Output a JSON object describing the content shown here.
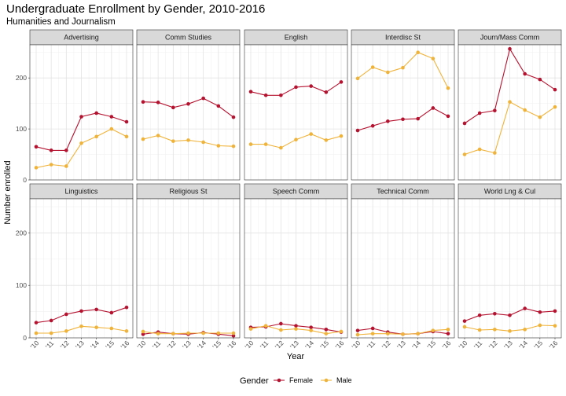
{
  "chart_data": {
    "type": "line",
    "title": "Undergraduate Enrollment by Gender, 2010-2016",
    "subtitle": "Humanities and Journalism",
    "xlabel": "Year",
    "ylabel": "Number enrolled",
    "x": [
      "'10",
      "'11",
      "'12",
      "'13",
      "'14",
      "'15",
      "'16"
    ],
    "ylim": [
      0,
      265
    ],
    "yticks": [
      0,
      100,
      200
    ],
    "grid": true,
    "legend": {
      "title": "Gender",
      "position": "bottom",
      "entries": [
        "Female",
        "Male"
      ]
    },
    "colors": {
      "Female": "#b5122f",
      "Male": "#f0b33a"
    },
    "panels": [
      {
        "name": "Advertising",
        "series": [
          {
            "name": "Female",
            "values": [
              65,
              58,
              58,
              124,
              131,
              124,
              114
            ]
          },
          {
            "name": "Male",
            "values": [
              24,
              30,
              27,
              72,
              85,
              100,
              85
            ]
          }
        ]
      },
      {
        "name": "Comm Studies",
        "series": [
          {
            "name": "Female",
            "values": [
              153,
              152,
              142,
              149,
              160,
              145,
              123
            ]
          },
          {
            "name": "Male",
            "values": [
              80,
              87,
              76,
              78,
              74,
              67,
              66
            ]
          }
        ]
      },
      {
        "name": "English",
        "series": [
          {
            "name": "Female",
            "values": [
              173,
              166,
              166,
              182,
              184,
              172,
              192
            ]
          },
          {
            "name": "Male",
            "values": [
              70,
              70,
              63,
              79,
              90,
              78,
              86
            ]
          }
        ]
      },
      {
        "name": "Interdisc St",
        "series": [
          {
            "name": "Female",
            "values": [
              97,
              106,
              115,
              119,
              120,
              141,
              125
            ]
          },
          {
            "name": "Male",
            "values": [
              199,
              221,
              211,
              220,
              250,
              238,
              180
            ]
          }
        ]
      },
      {
        "name": "Journ/Mass Comm",
        "series": [
          {
            "name": "Female",
            "values": [
              111,
              131,
              136,
              257,
              208,
              197,
              177
            ]
          },
          {
            "name": "Male",
            "values": [
              50,
              60,
              53,
              153,
              137,
              123,
              143
            ]
          }
        ]
      },
      {
        "name": "Linguistics",
        "series": [
          {
            "name": "Female",
            "values": [
              29,
              33,
              45,
              51,
              54,
              48,
              58
            ]
          },
          {
            "name": "Male",
            "values": [
              9,
              9,
              13,
              22,
              20,
              18,
              13
            ]
          }
        ]
      },
      {
        "name": "Religious St",
        "series": [
          {
            "name": "Female",
            "values": [
              7,
              11,
              8,
              7,
              10,
              7,
              4
            ]
          },
          {
            "name": "Male",
            "values": [
              12,
              8,
              8,
              9,
              9,
              9,
              9
            ]
          }
        ]
      },
      {
        "name": "Speech Comm",
        "series": [
          {
            "name": "Female",
            "values": [
              20,
              21,
              27,
              23,
              20,
              16,
              11
            ]
          },
          {
            "name": "Male",
            "values": [
              17,
              23,
              15,
              17,
              14,
              8,
              12
            ]
          }
        ]
      },
      {
        "name": "Technical Comm",
        "series": [
          {
            "name": "Female",
            "values": [
              14,
              18,
              11,
              7,
              8,
              12,
              8
            ]
          },
          {
            "name": "Male",
            "values": [
              6,
              8,
              8,
              7,
              8,
              14,
              16
            ]
          }
        ]
      },
      {
        "name": "World Lng & Cul",
        "series": [
          {
            "name": "Female",
            "values": [
              32,
              43,
              46,
              43,
              56,
              49,
              51
            ]
          },
          {
            "name": "Male",
            "values": [
              21,
              15,
              16,
              13,
              16,
              24,
              23
            ]
          }
        ]
      }
    ]
  }
}
